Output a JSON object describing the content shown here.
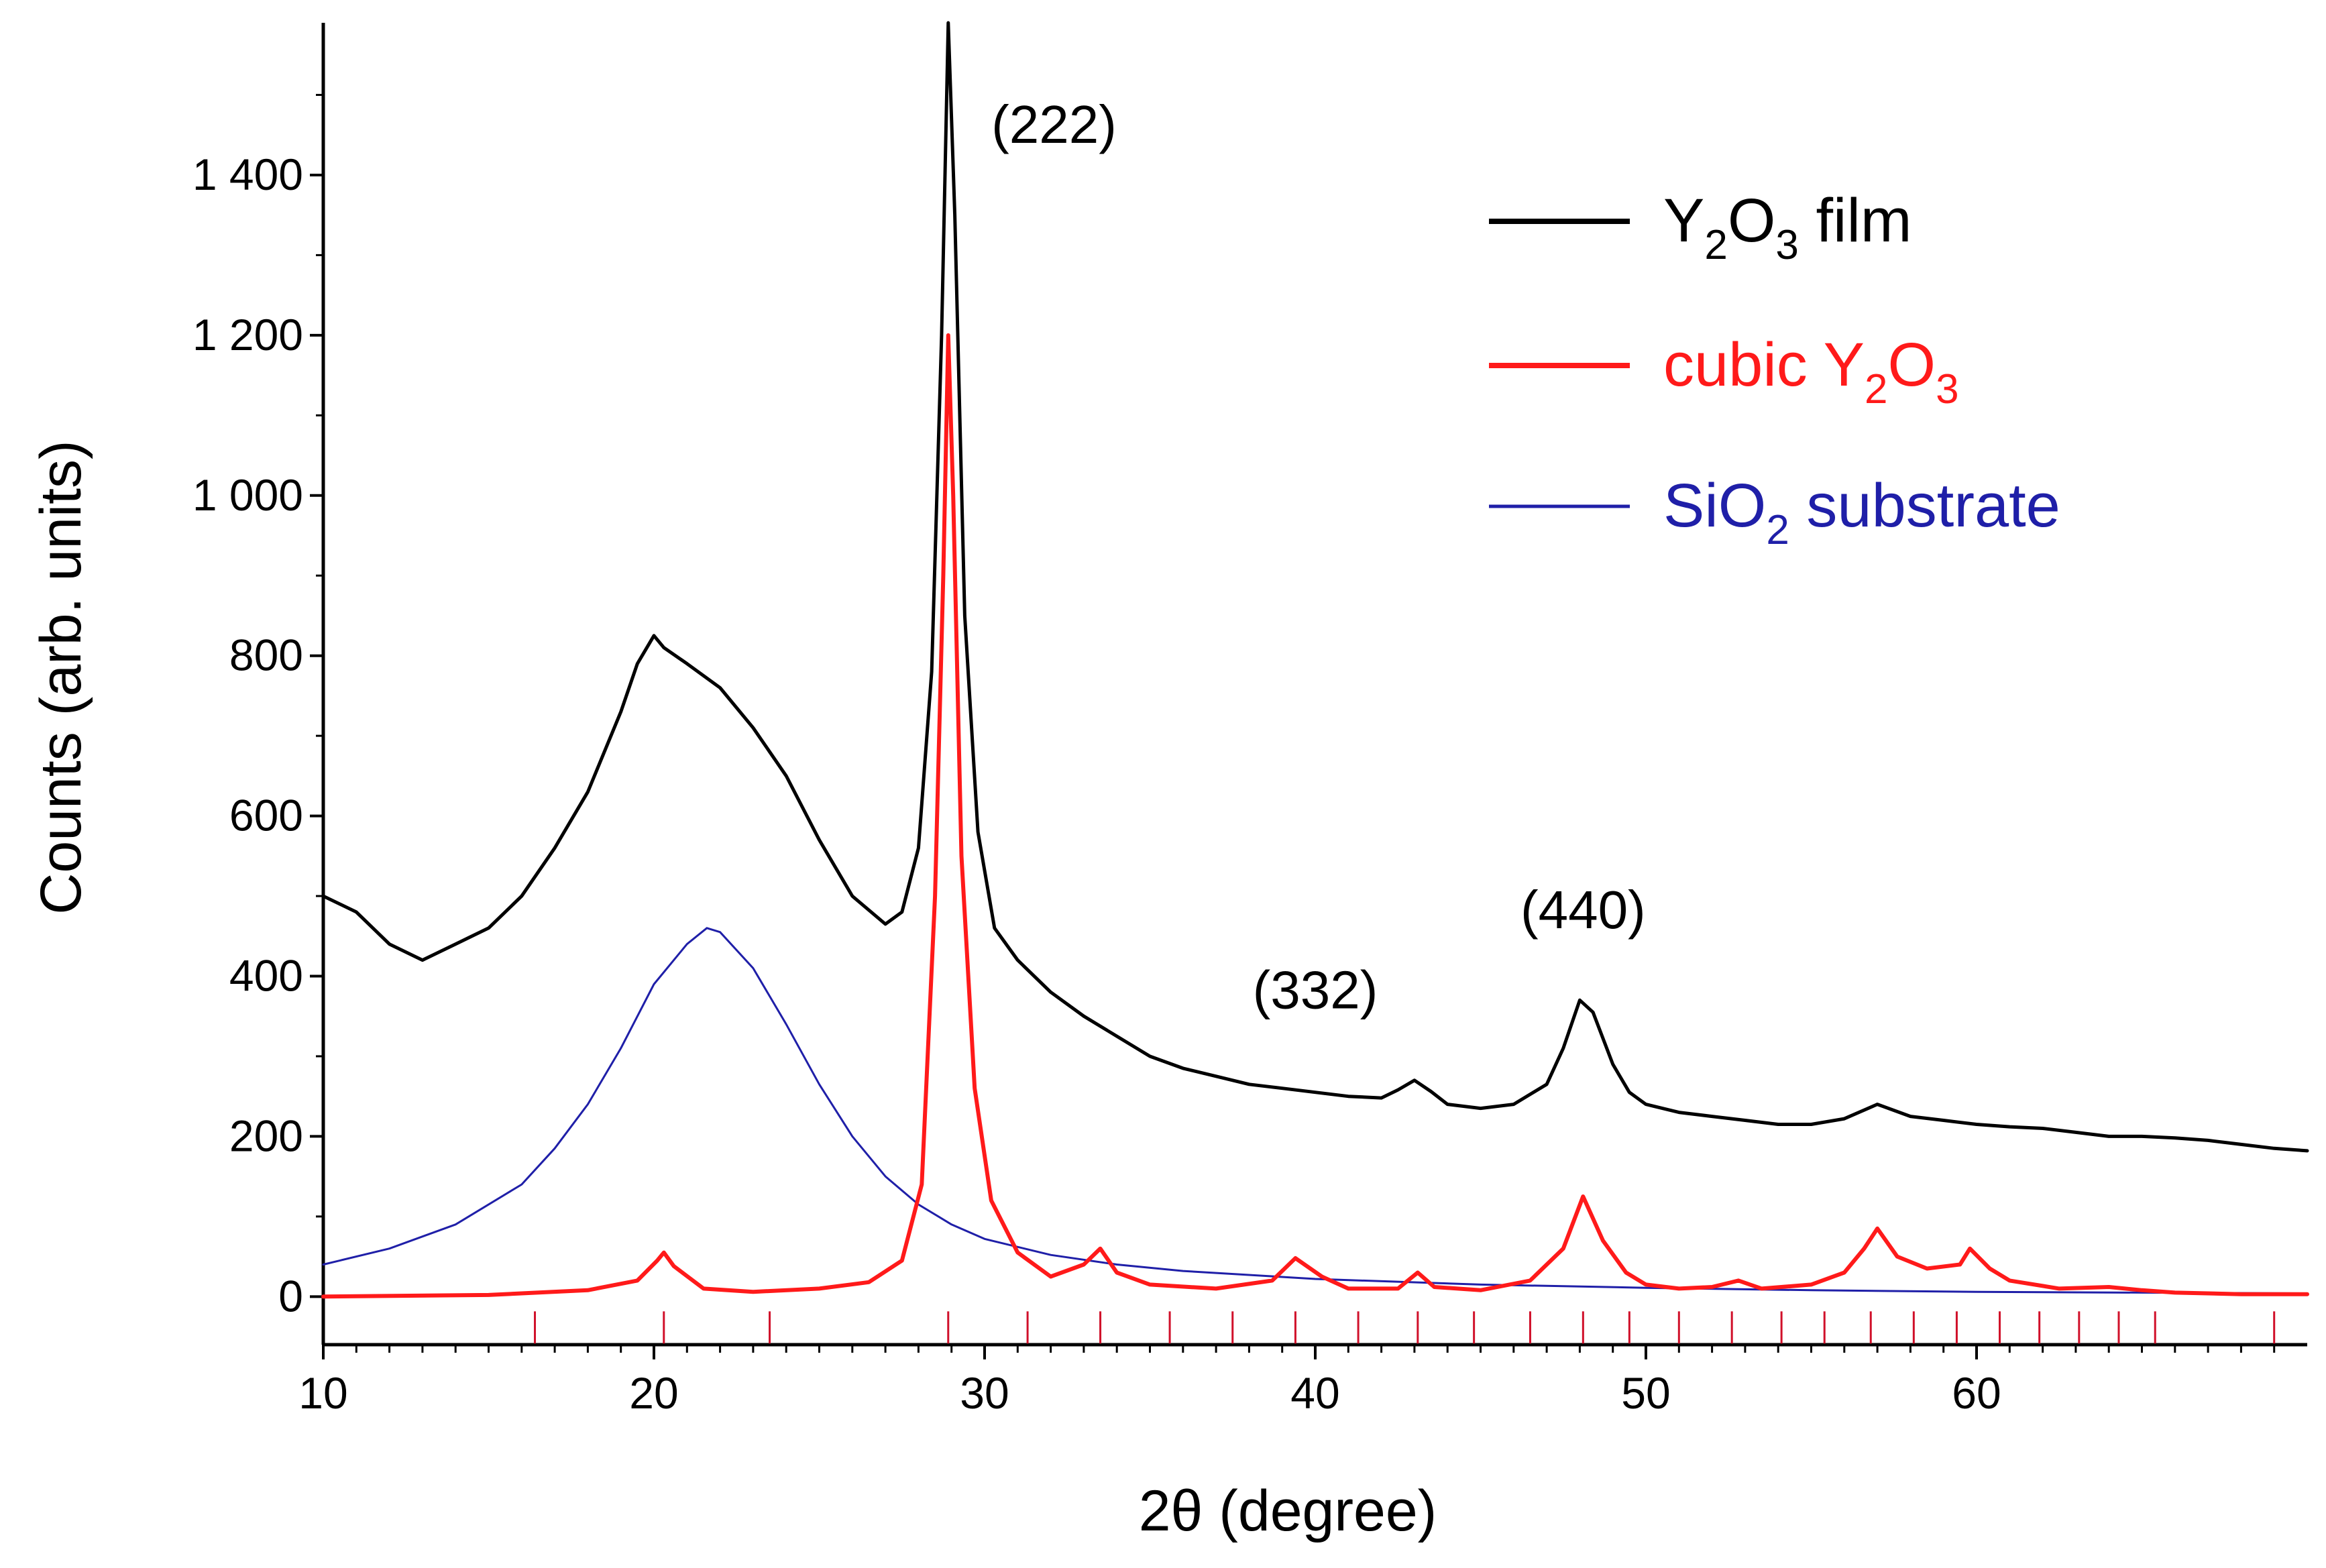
{
  "chart_data": {
    "type": "line",
    "title": "",
    "xlabel": "2θ (degree)",
    "ylabel": "Counts (arb. units)",
    "xlim": [
      10,
      70
    ],
    "ylim": [
      -60,
      1590
    ],
    "x_ticks": [
      10,
      20,
      30,
      40,
      50,
      60
    ],
    "x_tick_labels": [
      "10",
      "20",
      "30",
      "40",
      "50",
      "60"
    ],
    "y_ticks": [
      0,
      200,
      400,
      600,
      800,
      1000,
      1200,
      1400
    ],
    "y_tick_labels": [
      "0",
      "200",
      "400",
      "600",
      "800",
      "1 000",
      "1 200",
      "1 400"
    ],
    "legend_position": "top-right",
    "series": [
      {
        "name": "Y2O3 film",
        "legend_parts": [
          "Y",
          "2",
          "O",
          "3",
          " film"
        ],
        "color": "#000000",
        "x": [
          10,
          11,
          12,
          13,
          14,
          15,
          16,
          17,
          18,
          19,
          19.5,
          20,
          20.3,
          21,
          22,
          23,
          24,
          25,
          26,
          27,
          27.5,
          28,
          28.4,
          28.7,
          28.9,
          29.1,
          29.4,
          29.8,
          30.3,
          31,
          32,
          33,
          34,
          35,
          36,
          37,
          38,
          39,
          40,
          41,
          42,
          42.5,
          43,
          43.5,
          44,
          45,
          46,
          47,
          47.5,
          48,
          48.4,
          49,
          49.5,
          50,
          51,
          52,
          53,
          54,
          55,
          56,
          57,
          58,
          59,
          60,
          61,
          62,
          63,
          64,
          65,
          66,
          67,
          68,
          69,
          70
        ],
        "values": [
          500,
          480,
          440,
          420,
          440,
          460,
          500,
          560,
          630,
          730,
          790,
          825,
          810,
          790,
          760,
          710,
          650,
          570,
          500,
          465,
          480,
          560,
          780,
          1200,
          1590,
          1350,
          850,
          580,
          460,
          420,
          380,
          350,
          325,
          300,
          285,
          275,
          265,
          260,
          255,
          250,
          248,
          258,
          270,
          256,
          240,
          235,
          240,
          265,
          310,
          370,
          355,
          290,
          255,
          240,
          230,
          225,
          220,
          215,
          215,
          222,
          240,
          225,
          220,
          215,
          212,
          210,
          205,
          200,
          200,
          198,
          195,
          190,
          185,
          182
        ]
      },
      {
        "name": "cubic Y2O3",
        "legend_parts": [
          "cubic Y",
          "2",
          "O",
          "3",
          ""
        ],
        "color": "#ff1a1a",
        "x": [
          10,
          15,
          18,
          19.5,
          20.1,
          20.3,
          20.6,
          21.5,
          23,
          25,
          26.5,
          27.5,
          28.1,
          28.5,
          28.75,
          28.9,
          29.05,
          29.3,
          29.7,
          30.2,
          31,
          32,
          33,
          33.5,
          34,
          35,
          37,
          38.7,
          39.4,
          40.2,
          41,
          42.5,
          43.1,
          43.6,
          45,
          46.5,
          47.5,
          48.1,
          48.7,
          49.4,
          50,
          51,
          52,
          52.8,
          53.5,
          55,
          56,
          56.6,
          57,
          57.6,
          58.5,
          59.5,
          59.8,
          60.4,
          61,
          62.5,
          64,
          65,
          66,
          68,
          70
        ],
        "values": [
          0,
          2,
          8,
          20,
          45,
          55,
          38,
          10,
          6,
          10,
          18,
          45,
          140,
          500,
          900,
          1200,
          1000,
          550,
          260,
          120,
          55,
          25,
          40,
          60,
          30,
          15,
          10,
          20,
          48,
          25,
          10,
          10,
          30,
          12,
          8,
          20,
          60,
          125,
          70,
          30,
          15,
          10,
          12,
          20,
          10,
          15,
          30,
          60,
          85,
          50,
          35,
          40,
          60,
          35,
          20,
          10,
          12,
          8,
          5,
          3,
          3
        ]
      },
      {
        "name": "SiO2 substrate",
        "legend_parts": [
          "SiO",
          "2",
          " substrate",
          "",
          ""
        ],
        "color": "#1f1fa8",
        "x": [
          10,
          12,
          14,
          16,
          17,
          18,
          19,
          20,
          21,
          21.6,
          22,
          23,
          24,
          25,
          26,
          27,
          28,
          29,
          30,
          32,
          34,
          36,
          40,
          45,
          50,
          55,
          60,
          65,
          70
        ],
        "values": [
          40,
          60,
          90,
          140,
          185,
          240,
          310,
          390,
          440,
          460,
          455,
          410,
          340,
          265,
          200,
          150,
          115,
          90,
          72,
          52,
          40,
          32,
          22,
          15,
          11,
          8,
          6,
          5,
          4
        ]
      }
    ],
    "reference_ticks": [
      16.4,
      20.3,
      23.5,
      28.9,
      31.3,
      33.5,
      35.6,
      37.5,
      39.4,
      41.3,
      43.1,
      44.8,
      46.5,
      48.1,
      49.5,
      51.0,
      52.6,
      54.1,
      55.4,
      56.8,
      58.1,
      59.4,
      60.7,
      61.9,
      63.1,
      64.3,
      65.4,
      69.0
    ],
    "annotations": [
      {
        "text": "(222)",
        "x": 32.1,
        "y": 1440
      },
      {
        "text": "(332)",
        "x": 40.0,
        "y": 360
      },
      {
        "text": "(440)",
        "x": 48.1,
        "y": 460
      }
    ]
  }
}
